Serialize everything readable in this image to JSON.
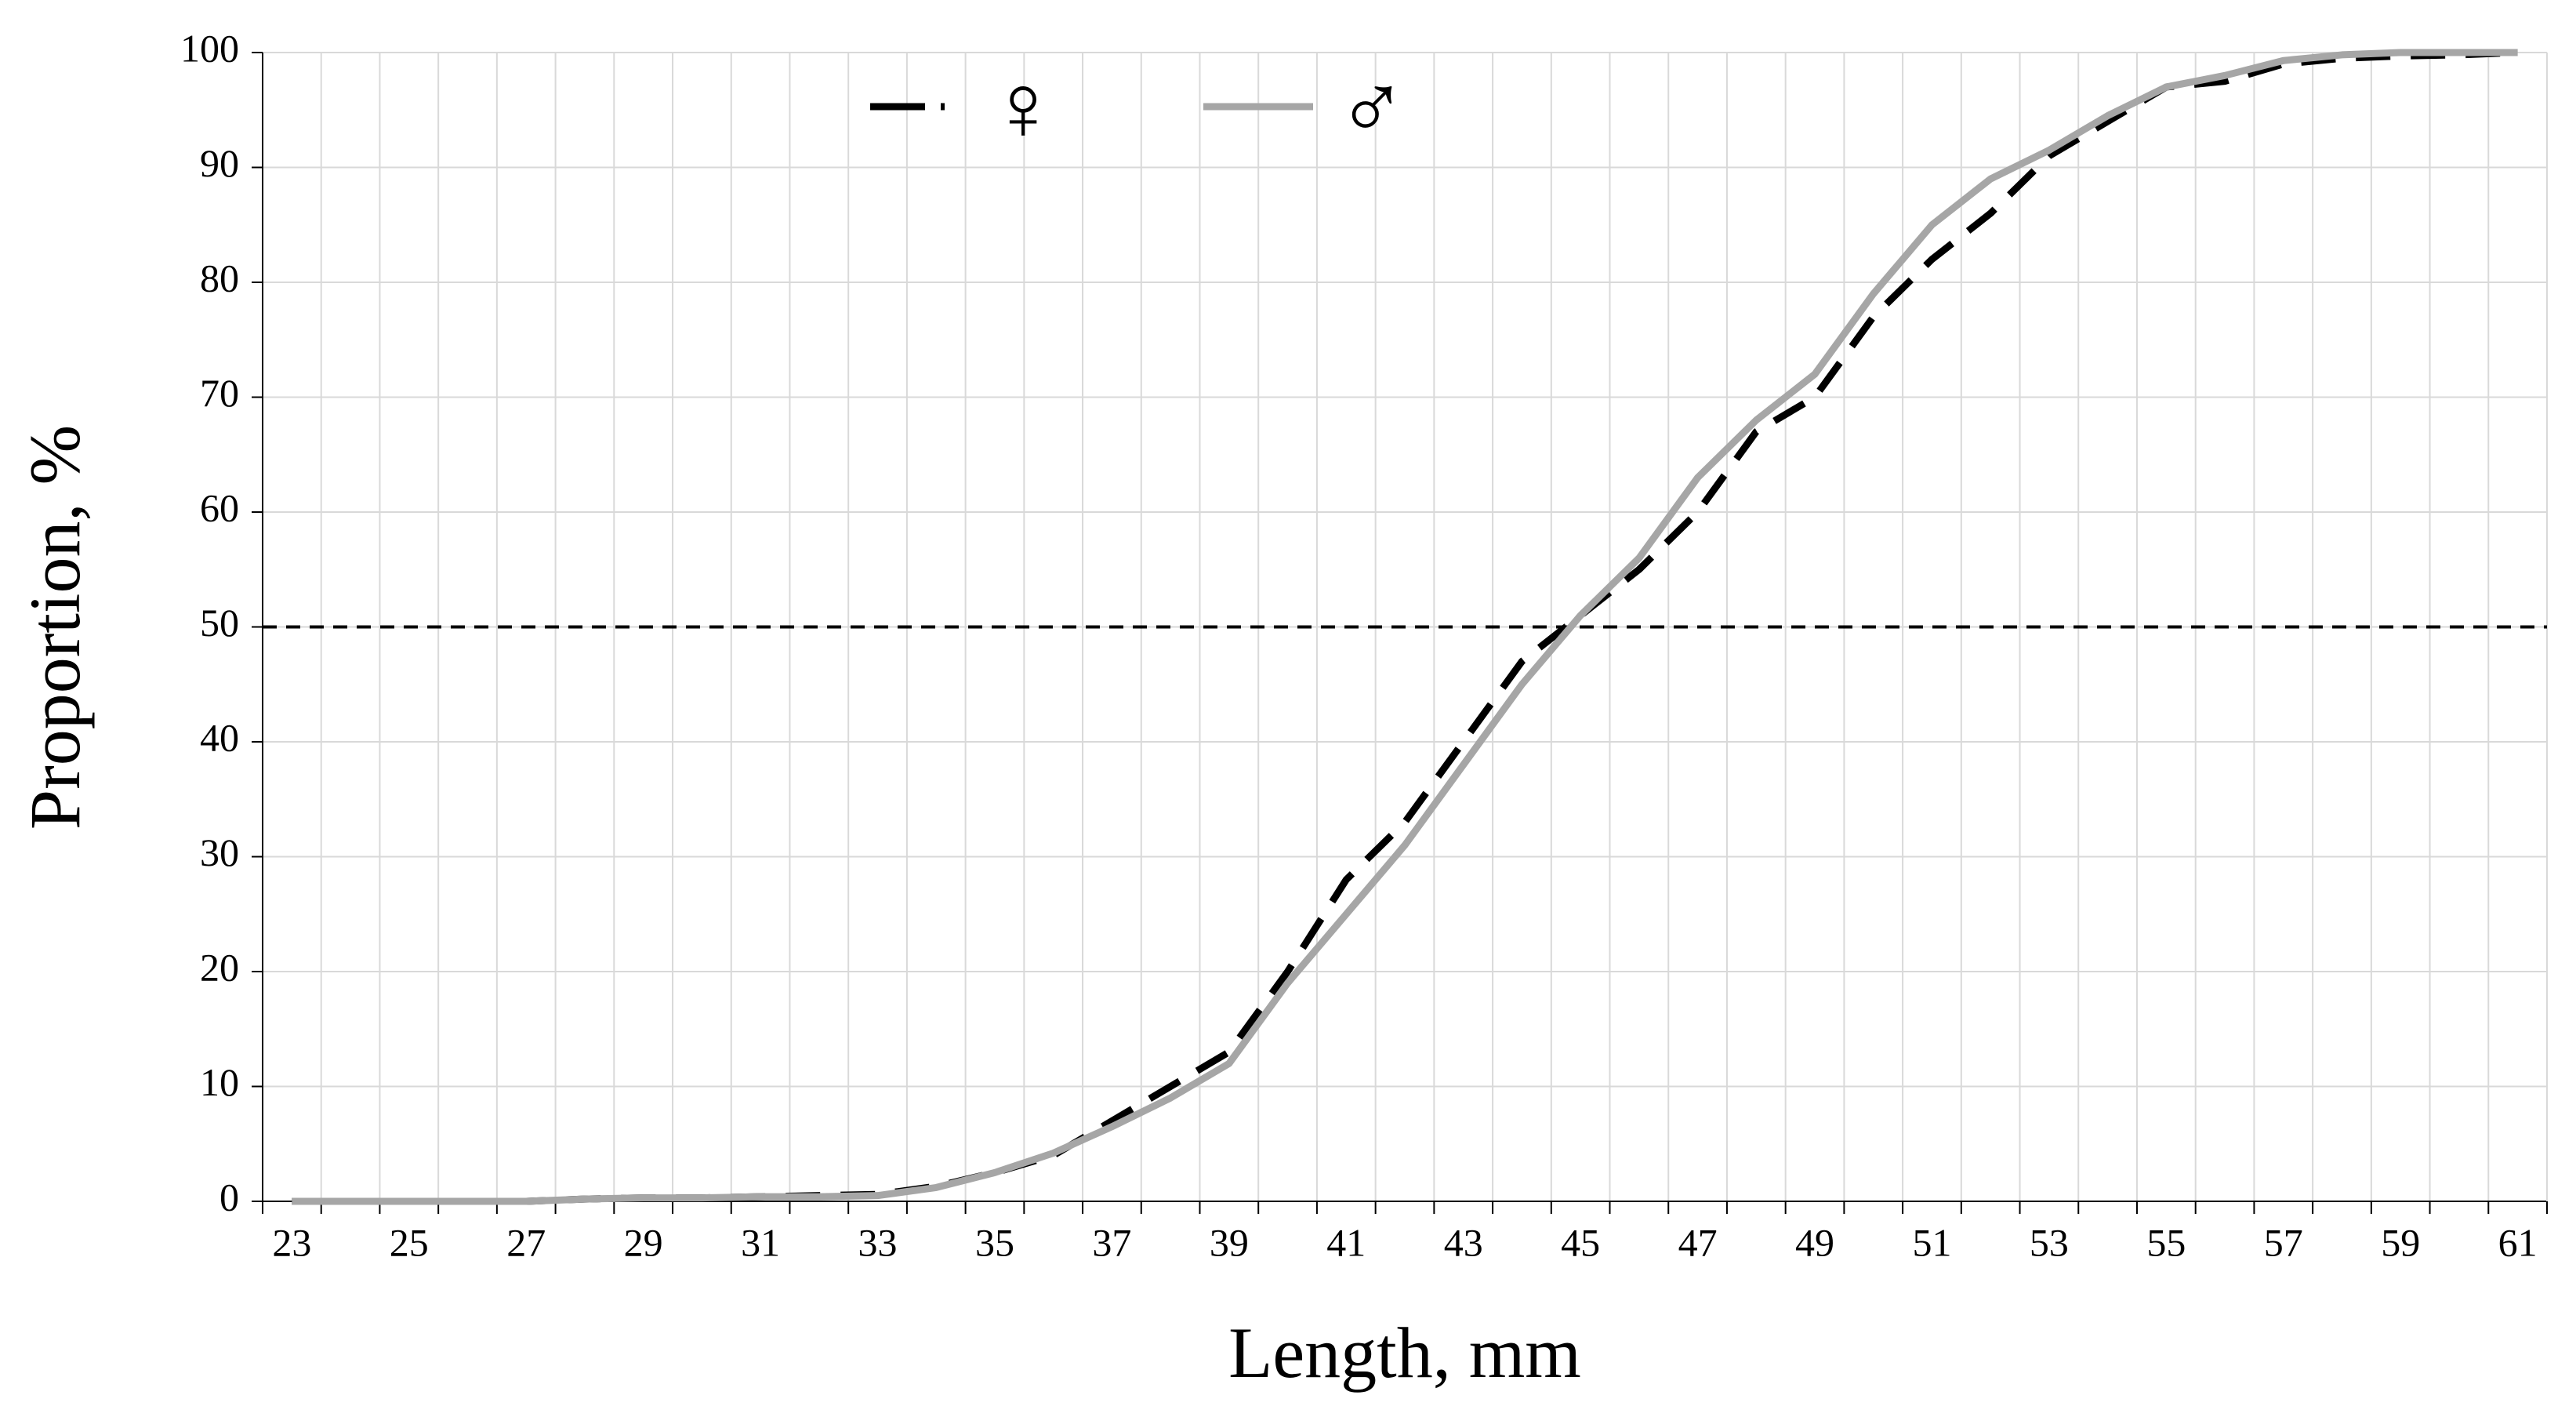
{
  "chart_data": {
    "type": "line",
    "x_label": "Length, mm",
    "y_label": "Proportion, %",
    "categories": [
      23,
      null,
      25,
      null,
      27,
      null,
      29,
      null,
      31,
      null,
      33,
      null,
      35,
      null,
      37,
      null,
      39,
      null,
      41,
      null,
      43,
      null,
      45,
      null,
      47,
      null,
      49,
      null,
      51,
      null,
      53,
      null,
      55,
      null,
      57,
      null,
      59,
      null,
      61
    ],
    "series": [
      {
        "name": "♀",
        "color": "#000000",
        "dashed": true,
        "values": [
          0,
          0,
          0,
          0,
          0,
          0.2,
          0.3,
          0.3,
          0.4,
          0.5,
          0.6,
          1.3,
          2.5,
          4,
          7,
          10,
          13,
          20,
          28,
          33,
          40,
          47,
          51,
          55,
          60,
          67,
          70,
          77,
          82,
          86,
          91,
          94,
          97,
          97.5,
          99,
          99.5,
          99.7,
          99.8,
          100
        ]
      },
      {
        "name": "♂",
        "color": "#a6a6a6",
        "dashed": false,
        "values": [
          0,
          0,
          0,
          0,
          0,
          0.2,
          0.3,
          0.3,
          0.4,
          0.4,
          0.5,
          1.2,
          2.5,
          4.2,
          6.5,
          9,
          12,
          19,
          25,
          31,
          38,
          45,
          51,
          56,
          63,
          68,
          72,
          79,
          85,
          89,
          91.5,
          94.5,
          97,
          98,
          99.3,
          99.8,
          100,
          100,
          100
        ]
      }
    ],
    "reference_line": 50,
    "ylim": [
      0,
      100
    ],
    "yticks": [
      0,
      10,
      20,
      30,
      40,
      50,
      60,
      70,
      80,
      90,
      100
    ],
    "grid": true
  }
}
